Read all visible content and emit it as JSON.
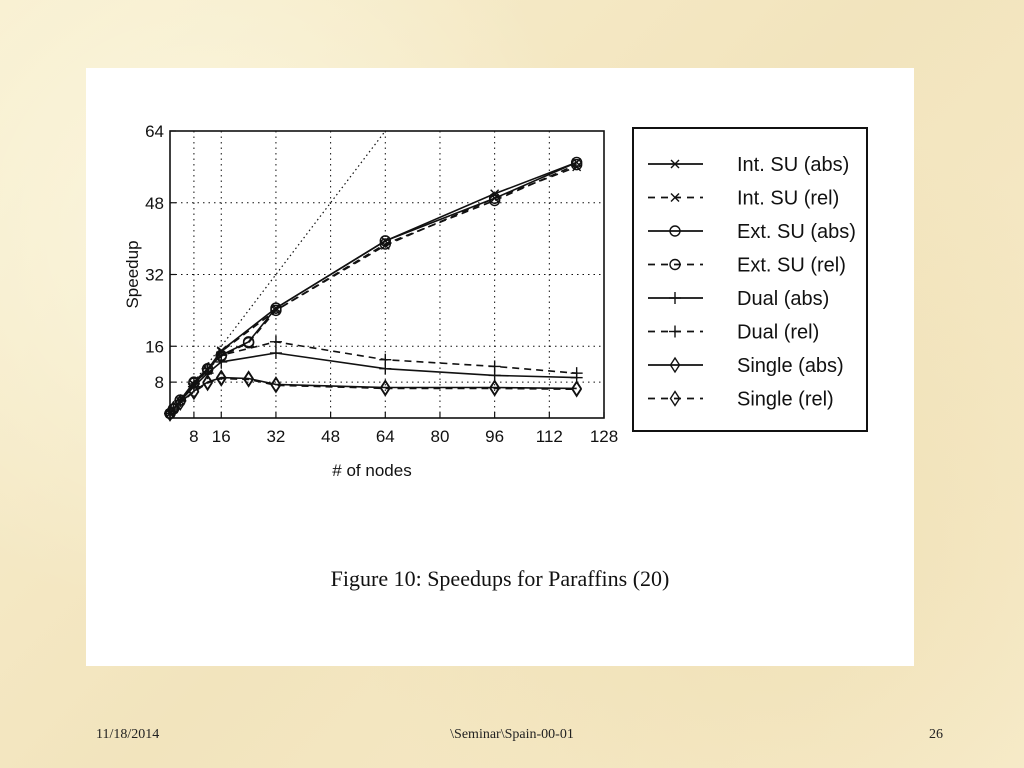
{
  "footer": {
    "date": "11/18/2014",
    "path": "\\Seminar\\Spain-00-01",
    "page": "26"
  },
  "caption": "Figure 10: Speedups for Paraffins (20)",
  "colors": {
    "ink": "#111111",
    "panel": "#ffffff",
    "background": "#f6ecc8"
  },
  "chart_data": {
    "type": "line",
    "title": "",
    "xlabel": "# of nodes",
    "ylabel": "Speedup",
    "xlim": [
      1,
      128
    ],
    "ylim": [
      0,
      64
    ],
    "xticks": [
      8,
      16,
      32,
      48,
      64,
      80,
      96,
      112,
      128
    ],
    "yticks": [
      8,
      16,
      32,
      48,
      64
    ],
    "grid": true,
    "legend_position": "right",
    "ideal_line": {
      "style": "dotted",
      "x": [
        1,
        64
      ],
      "y": [
        1,
        64
      ]
    },
    "series": [
      {
        "name": "Int. SU (abs)",
        "line": "solid",
        "marker": "x",
        "x": [
          1,
          2,
          4,
          8,
          12,
          16,
          32,
          64,
          96,
          120
        ],
        "y": [
          1,
          2,
          3.8,
          7.5,
          10.8,
          15,
          24.5,
          39.5,
          50,
          57
        ]
      },
      {
        "name": "Int. SU (rel)",
        "line": "dashed",
        "marker": "x",
        "x": [
          1,
          2,
          4,
          8,
          12,
          16,
          32,
          64,
          96,
          120
        ],
        "y": [
          1,
          2,
          3.8,
          7.4,
          10.6,
          14.8,
          24,
          38.5,
          49,
          56
        ]
      },
      {
        "name": "Ext. SU (abs)",
        "line": "solid",
        "marker": "circle",
        "x": [
          1,
          2,
          4,
          8,
          12,
          16,
          24,
          32,
          64,
          96,
          120
        ],
        "y": [
          1,
          2,
          4,
          8,
          11,
          14,
          17,
          24.5,
          39.5,
          49,
          57
        ]
      },
      {
        "name": "Ext. SU (rel)",
        "line": "dashed",
        "marker": "circle",
        "x": [
          1,
          2,
          4,
          8,
          12,
          16,
          24,
          32,
          64,
          96,
          120
        ],
        "y": [
          1,
          2,
          4,
          7.8,
          10.8,
          13.8,
          16.8,
          24,
          38.8,
          48.5,
          56.5
        ]
      },
      {
        "name": "Dual (abs)",
        "line": "solid",
        "marker": "plus",
        "x": [
          1,
          2,
          4,
          8,
          12,
          16,
          32,
          64,
          96,
          120
        ],
        "y": [
          1,
          2,
          3.8,
          7,
          10,
          12.5,
          14.5,
          11,
          9.5,
          9
        ]
      },
      {
        "name": "Dual (rel)",
        "line": "dashed",
        "marker": "plus",
        "x": [
          1,
          2,
          4,
          8,
          12,
          16,
          32,
          64,
          96,
          120
        ],
        "y": [
          1,
          2,
          3.9,
          7.6,
          11,
          14,
          17,
          13,
          11.5,
          10
        ]
      },
      {
        "name": "Single (abs)",
        "line": "solid",
        "marker": "diamond",
        "x": [
          1,
          2,
          4,
          8,
          12,
          16,
          24,
          32,
          64,
          96,
          120
        ],
        "y": [
          1,
          2,
          3.5,
          6,
          8,
          9,
          8.8,
          7.5,
          6.8,
          6.8,
          6.6
        ]
      },
      {
        "name": "Single (rel)",
        "line": "dashed",
        "marker": "diamond",
        "x": [
          1,
          2,
          4,
          8,
          12,
          16,
          24,
          32,
          64,
          96,
          120
        ],
        "y": [
          1,
          2,
          3.4,
          5.8,
          7.8,
          8.8,
          8.6,
          7.3,
          6.6,
          6.6,
          6.4
        ]
      }
    ]
  }
}
